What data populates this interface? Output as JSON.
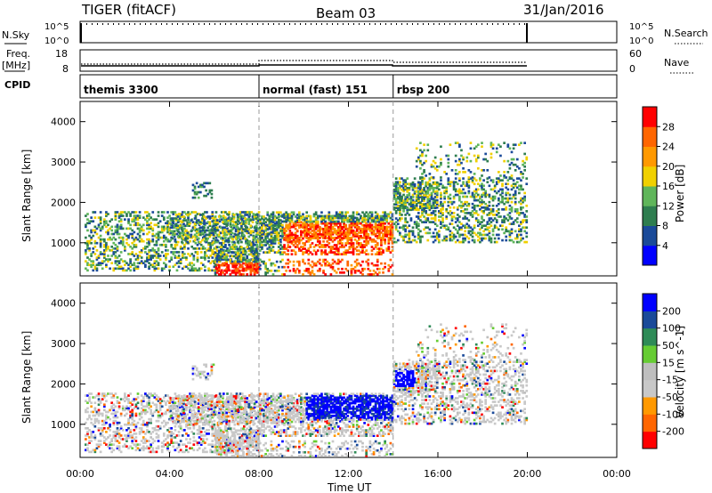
{
  "header": {
    "station": "TIGER (fitACF)",
    "beam": "Beam 03",
    "date": "31/Jan/2016"
  },
  "panels": {
    "nsky_label": "N.Sky",
    "nsky_ticks": [
      "10^5",
      "10^0"
    ],
    "nsearch_label": "N.Search",
    "freq_label_1": "Freq.",
    "freq_label_2": "[MHz]",
    "freq_ticks": [
      "18",
      "8"
    ],
    "nave_label": "Nave",
    "nave_ticks": [
      "60",
      "0"
    ],
    "cpid_label": "CPID"
  },
  "colors": {
    "power": [
      "#0000ff",
      "#1a4a99",
      "#2e7d4f",
      "#5fb55a",
      "#f0d000",
      "#ff9900",
      "#ff6600",
      "#ff0000"
    ],
    "velocity": [
      "#ff0000",
      "#ff6600",
      "#ff9900",
      "#c8c8c8",
      "#bebebe",
      "#66cc33",
      "#2e8b57",
      "#1a4a99",
      "#0000ff"
    ]
  },
  "chart_data": [
    {
      "type": "heatmap",
      "name": "power",
      "ylabel": "Slant Range [km]",
      "ylim": [
        180,
        4500
      ],
      "yticks": [
        "4000",
        "3000",
        "2000",
        "1000"
      ],
      "colorbar_label": "Power [dB]",
      "colorbar_ticks": [
        "28",
        "24",
        "20",
        "16",
        "12",
        "8",
        "4"
      ]
    },
    {
      "type": "heatmap",
      "name": "velocity",
      "ylabel": "Slant Range [km]",
      "ylim": [
        180,
        4500
      ],
      "yticks": [
        "4000",
        "3000",
        "2000",
        "1000"
      ],
      "colorbar_label": "Velocity [m s^-1]",
      "colorbar_ticks": [
        "200",
        "100",
        "50",
        "15",
        "-15",
        "-50",
        "-100",
        "-200"
      ]
    }
  ],
  "cpid_segments": [
    {
      "start_hour": 0,
      "label": "themis 3300"
    },
    {
      "start_hour": 8,
      "label": "normal (fast) 151"
    },
    {
      "start_hour": 14,
      "label": "rbsp 200"
    }
  ],
  "time_axis": {
    "label": "Time UT",
    "ticks": [
      "00:00",
      "04:00",
      "08:00",
      "12:00",
      "16:00",
      "20:00",
      "00:00"
    ],
    "range_hours": [
      0,
      24
    ]
  }
}
